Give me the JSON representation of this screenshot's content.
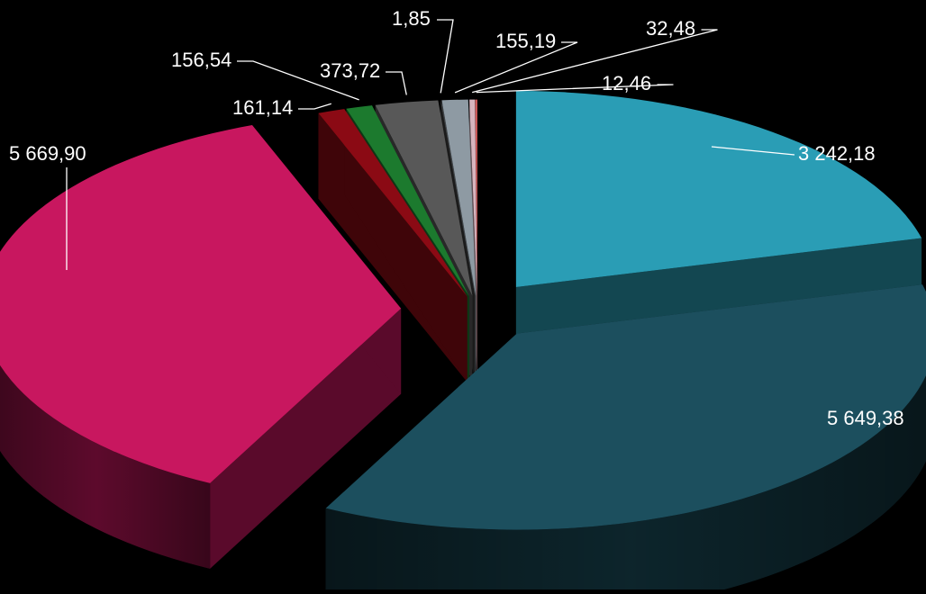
{
  "chart_data": {
    "type": "pie",
    "three_d": true,
    "exploded": true,
    "background": "#000000",
    "title": "",
    "legend": "none",
    "data_labels": [
      "3 242,18",
      "5 649,38",
      "5 669,90",
      "161,14",
      "156,54",
      "373,72",
      "1,85",
      "155,19",
      "32,48",
      "12,46"
    ],
    "values": [
      3242.18,
      5649.38,
      5669.9,
      161.14,
      156.54,
      373.72,
      1.85,
      155.19,
      32.48,
      12.46
    ],
    "colors": [
      "#2A9DB5",
      "#1C4F5E",
      "#C8175F",
      "#8B0A14",
      "#1C7A2E",
      "#585858",
      "#3C3C3C",
      "#8E9AA3",
      "#D8B4BE",
      "#D45A5A"
    ]
  }
}
